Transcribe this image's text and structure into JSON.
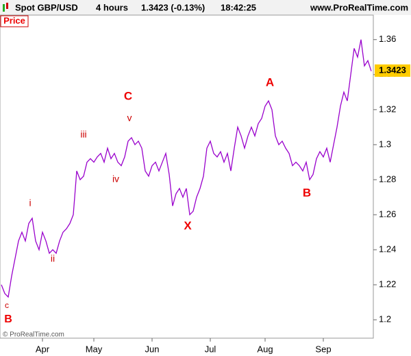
{
  "chart_data": {
    "type": "line",
    "title": "Spot GBP/USD",
    "timeframe": "4 hours",
    "last_price_text": "1.3423 (-0.13%)",
    "time": "18:42:25",
    "website": "www.ProRealTime.com",
    "panel_label": "Price",
    "copyright": "© ProRealTime.com",
    "last_price": 1.3423,
    "last_price_color": "#ffcc00",
    "categories": [
      null,
      null,
      null,
      null,
      null,
      null,
      null,
      null,
      null,
      null,
      null,
      null,
      "Apr",
      null,
      null,
      null,
      null,
      null,
      null,
      null,
      null,
      null,
      null,
      null,
      null,
      null,
      null,
      "May",
      null,
      null,
      null,
      null,
      null,
      null,
      null,
      null,
      null,
      null,
      null,
      null,
      null,
      null,
      null,
      null,
      "Jun",
      null,
      null,
      null,
      null,
      null,
      null,
      null,
      null,
      null,
      null,
      null,
      null,
      null,
      null,
      null,
      null,
      "Jul",
      null,
      null,
      null,
      null,
      null,
      null,
      null,
      null,
      null,
      null,
      null,
      null,
      null,
      null,
      null,
      "Aug",
      null,
      null,
      null,
      null,
      null,
      null,
      null,
      null,
      null,
      null,
      null,
      null,
      null,
      null,
      null,
      null,
      "Sep",
      null,
      null,
      null,
      null,
      null,
      null,
      null,
      null,
      null,
      null,
      null,
      null,
      null,
      null
    ],
    "series": [
      {
        "name": "Price",
        "color": "#9900cc",
        "values": [
          1.22,
          1.215,
          1.213,
          1.225,
          1.235,
          1.245,
          1.25,
          1.245,
          1.255,
          1.258,
          1.245,
          1.24,
          1.25,
          1.245,
          1.238,
          1.24,
          1.238,
          1.245,
          1.25,
          1.252,
          1.255,
          1.26,
          1.285,
          1.28,
          1.282,
          1.29,
          1.292,
          1.29,
          1.293,
          1.295,
          1.29,
          1.298,
          1.292,
          1.295,
          1.29,
          1.288,
          1.293,
          1.302,
          1.304,
          1.3,
          1.302,
          1.298,
          1.285,
          1.282,
          1.288,
          1.29,
          1.285,
          1.29,
          1.295,
          1.283,
          1.265,
          1.272,
          1.275,
          1.27,
          1.275,
          1.26,
          1.262,
          1.27,
          1.275,
          1.282,
          1.298,
          1.302,
          1.295,
          1.293,
          1.296,
          1.29,
          1.295,
          1.285,
          1.298,
          1.31,
          1.305,
          1.298,
          1.305,
          1.31,
          1.305,
          1.312,
          1.315,
          1.322,
          1.325,
          1.32,
          1.305,
          1.3,
          1.302,
          1.298,
          1.295,
          1.288,
          1.29,
          1.288,
          1.285,
          1.29,
          1.28,
          1.283,
          1.292,
          1.296,
          1.293,
          1.298,
          1.29,
          1.3,
          1.31,
          1.322,
          1.33,
          1.325,
          1.34,
          1.355,
          1.35,
          1.36,
          1.345,
          1.348,
          1.342
        ]
      }
    ],
    "ylim": [
      1.1895,
      1.374
    ],
    "yticks": [
      1.2,
      1.22,
      1.24,
      1.26,
      1.28,
      1.3,
      1.32,
      1.34,
      1.36
    ],
    "annotations": [
      "c",
      "B",
      "i",
      "ii",
      "iii",
      "iv",
      "v",
      "C",
      "X",
      "A",
      "B"
    ]
  }
}
